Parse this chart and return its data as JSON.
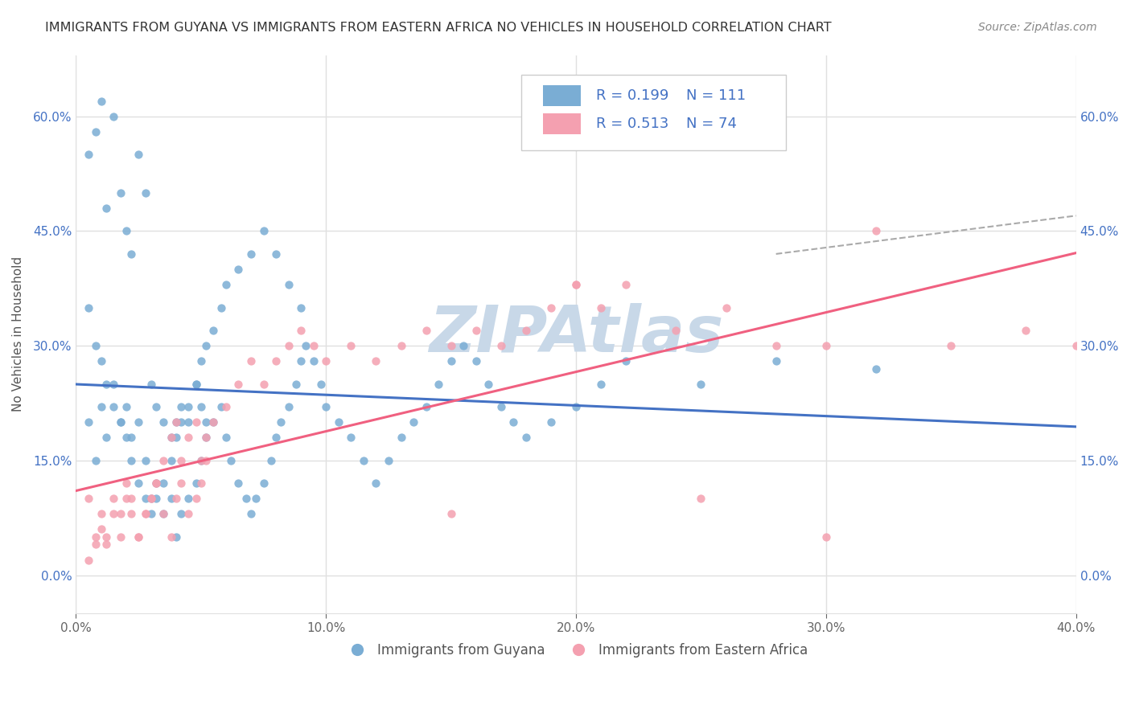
{
  "title": "IMMIGRANTS FROM GUYANA VS IMMIGRANTS FROM EASTERN AFRICA NO VEHICLES IN HOUSEHOLD CORRELATION CHART",
  "source": "Source: ZipAtlas.com",
  "xlabel_bottom": "Immigrants from Guyana",
  "xlabel_bottom2": "Immigrants from Eastern Africa",
  "ylabel": "No Vehicles in Household",
  "xlim": [
    0.0,
    0.4
  ],
  "ylim": [
    -0.05,
    0.68
  ],
  "xticks": [
    0.0,
    0.1,
    0.2,
    0.3,
    0.4
  ],
  "xtick_labels": [
    "0.0%",
    "10.0%",
    "20.0%",
    "30.0%",
    "40.0%"
  ],
  "yticks": [
    0.0,
    0.15,
    0.3,
    0.45,
    0.6
  ],
  "ytick_labels": [
    "0.0%",
    "15.0%",
    "30.0%",
    "45.0%",
    "60.0%"
  ],
  "blue_R": 0.199,
  "blue_N": 111,
  "pink_R": 0.513,
  "pink_N": 74,
  "blue_color": "#7aadd4",
  "pink_color": "#f4a0b0",
  "blue_line_color": "#4472c4",
  "pink_line_color": "#f06080",
  "dash_line_color": "#aaaaaa",
  "legend_text_color": "#4472c4",
  "legend_label_color": "#333333",
  "watermark": "ZIPAtlas",
  "watermark_color": "#c8d8e8",
  "background_color": "#ffffff",
  "grid_color": "#e0e0e0",
  "blue_scatter_x": [
    0.005,
    0.008,
    0.01,
    0.012,
    0.015,
    0.018,
    0.02,
    0.022,
    0.025,
    0.028,
    0.03,
    0.032,
    0.035,
    0.038,
    0.04,
    0.042,
    0.045,
    0.048,
    0.05,
    0.052,
    0.005,
    0.008,
    0.01,
    0.012,
    0.015,
    0.018,
    0.02,
    0.022,
    0.025,
    0.028,
    0.03,
    0.032,
    0.035,
    0.038,
    0.04,
    0.042,
    0.045,
    0.048,
    0.05,
    0.052,
    0.055,
    0.058,
    0.06,
    0.062,
    0.065,
    0.068,
    0.07,
    0.072,
    0.075,
    0.078,
    0.08,
    0.082,
    0.085,
    0.088,
    0.09,
    0.092,
    0.095,
    0.098,
    0.1,
    0.105,
    0.11,
    0.115,
    0.12,
    0.125,
    0.13,
    0.135,
    0.14,
    0.145,
    0.15,
    0.155,
    0.16,
    0.165,
    0.17,
    0.175,
    0.18,
    0.19,
    0.2,
    0.21,
    0.22,
    0.005,
    0.008,
    0.01,
    0.012,
    0.015,
    0.018,
    0.02,
    0.022,
    0.025,
    0.028,
    0.03,
    0.032,
    0.035,
    0.038,
    0.04,
    0.042,
    0.045,
    0.048,
    0.05,
    0.052,
    0.055,
    0.058,
    0.06,
    0.065,
    0.07,
    0.075,
    0.08,
    0.085,
    0.09,
    0.25,
    0.28,
    0.32
  ],
  "blue_scatter_y": [
    0.2,
    0.15,
    0.22,
    0.18,
    0.25,
    0.2,
    0.22,
    0.18,
    0.2,
    0.15,
    0.25,
    0.22,
    0.2,
    0.18,
    0.2,
    0.22,
    0.2,
    0.25,
    0.22,
    0.2,
    0.55,
    0.58,
    0.62,
    0.48,
    0.6,
    0.5,
    0.45,
    0.42,
    0.55,
    0.5,
    0.1,
    0.12,
    0.08,
    0.1,
    0.05,
    0.08,
    0.1,
    0.12,
    0.15,
    0.18,
    0.2,
    0.22,
    0.18,
    0.15,
    0.12,
    0.1,
    0.08,
    0.1,
    0.12,
    0.15,
    0.18,
    0.2,
    0.22,
    0.25,
    0.28,
    0.3,
    0.28,
    0.25,
    0.22,
    0.2,
    0.18,
    0.15,
    0.12,
    0.15,
    0.18,
    0.2,
    0.22,
    0.25,
    0.28,
    0.3,
    0.28,
    0.25,
    0.22,
    0.2,
    0.18,
    0.2,
    0.22,
    0.25,
    0.28,
    0.35,
    0.3,
    0.28,
    0.25,
    0.22,
    0.2,
    0.18,
    0.15,
    0.12,
    0.1,
    0.08,
    0.1,
    0.12,
    0.15,
    0.18,
    0.2,
    0.22,
    0.25,
    0.28,
    0.3,
    0.32,
    0.35,
    0.38,
    0.4,
    0.42,
    0.45,
    0.42,
    0.38,
    0.35,
    0.25,
    0.28,
    0.27
  ],
  "pink_scatter_x": [
    0.005,
    0.008,
    0.01,
    0.012,
    0.015,
    0.018,
    0.02,
    0.022,
    0.025,
    0.028,
    0.03,
    0.032,
    0.035,
    0.038,
    0.04,
    0.042,
    0.045,
    0.048,
    0.05,
    0.052,
    0.005,
    0.008,
    0.01,
    0.012,
    0.015,
    0.018,
    0.02,
    0.022,
    0.025,
    0.028,
    0.03,
    0.032,
    0.035,
    0.038,
    0.04,
    0.042,
    0.045,
    0.048,
    0.05,
    0.052,
    0.055,
    0.06,
    0.065,
    0.07,
    0.075,
    0.08,
    0.085,
    0.09,
    0.095,
    0.1,
    0.11,
    0.12,
    0.13,
    0.14,
    0.15,
    0.16,
    0.17,
    0.18,
    0.19,
    0.2,
    0.21,
    0.22,
    0.24,
    0.26,
    0.28,
    0.3,
    0.32,
    0.35,
    0.38,
    0.4,
    0.15,
    0.2,
    0.25,
    0.3
  ],
  "pink_scatter_y": [
    0.1,
    0.05,
    0.08,
    0.05,
    0.1,
    0.08,
    0.12,
    0.1,
    0.05,
    0.08,
    0.1,
    0.12,
    0.08,
    0.05,
    0.1,
    0.12,
    0.08,
    0.1,
    0.12,
    0.15,
    0.02,
    0.04,
    0.06,
    0.04,
    0.08,
    0.05,
    0.1,
    0.08,
    0.05,
    0.08,
    0.1,
    0.12,
    0.15,
    0.18,
    0.2,
    0.15,
    0.18,
    0.2,
    0.15,
    0.18,
    0.2,
    0.22,
    0.25,
    0.28,
    0.25,
    0.28,
    0.3,
    0.32,
    0.3,
    0.28,
    0.3,
    0.28,
    0.3,
    0.32,
    0.3,
    0.32,
    0.3,
    0.32,
    0.35,
    0.38,
    0.35,
    0.38,
    0.32,
    0.35,
    0.3,
    0.3,
    0.45,
    0.3,
    0.32,
    0.3,
    0.08,
    0.38,
    0.1,
    0.05
  ]
}
